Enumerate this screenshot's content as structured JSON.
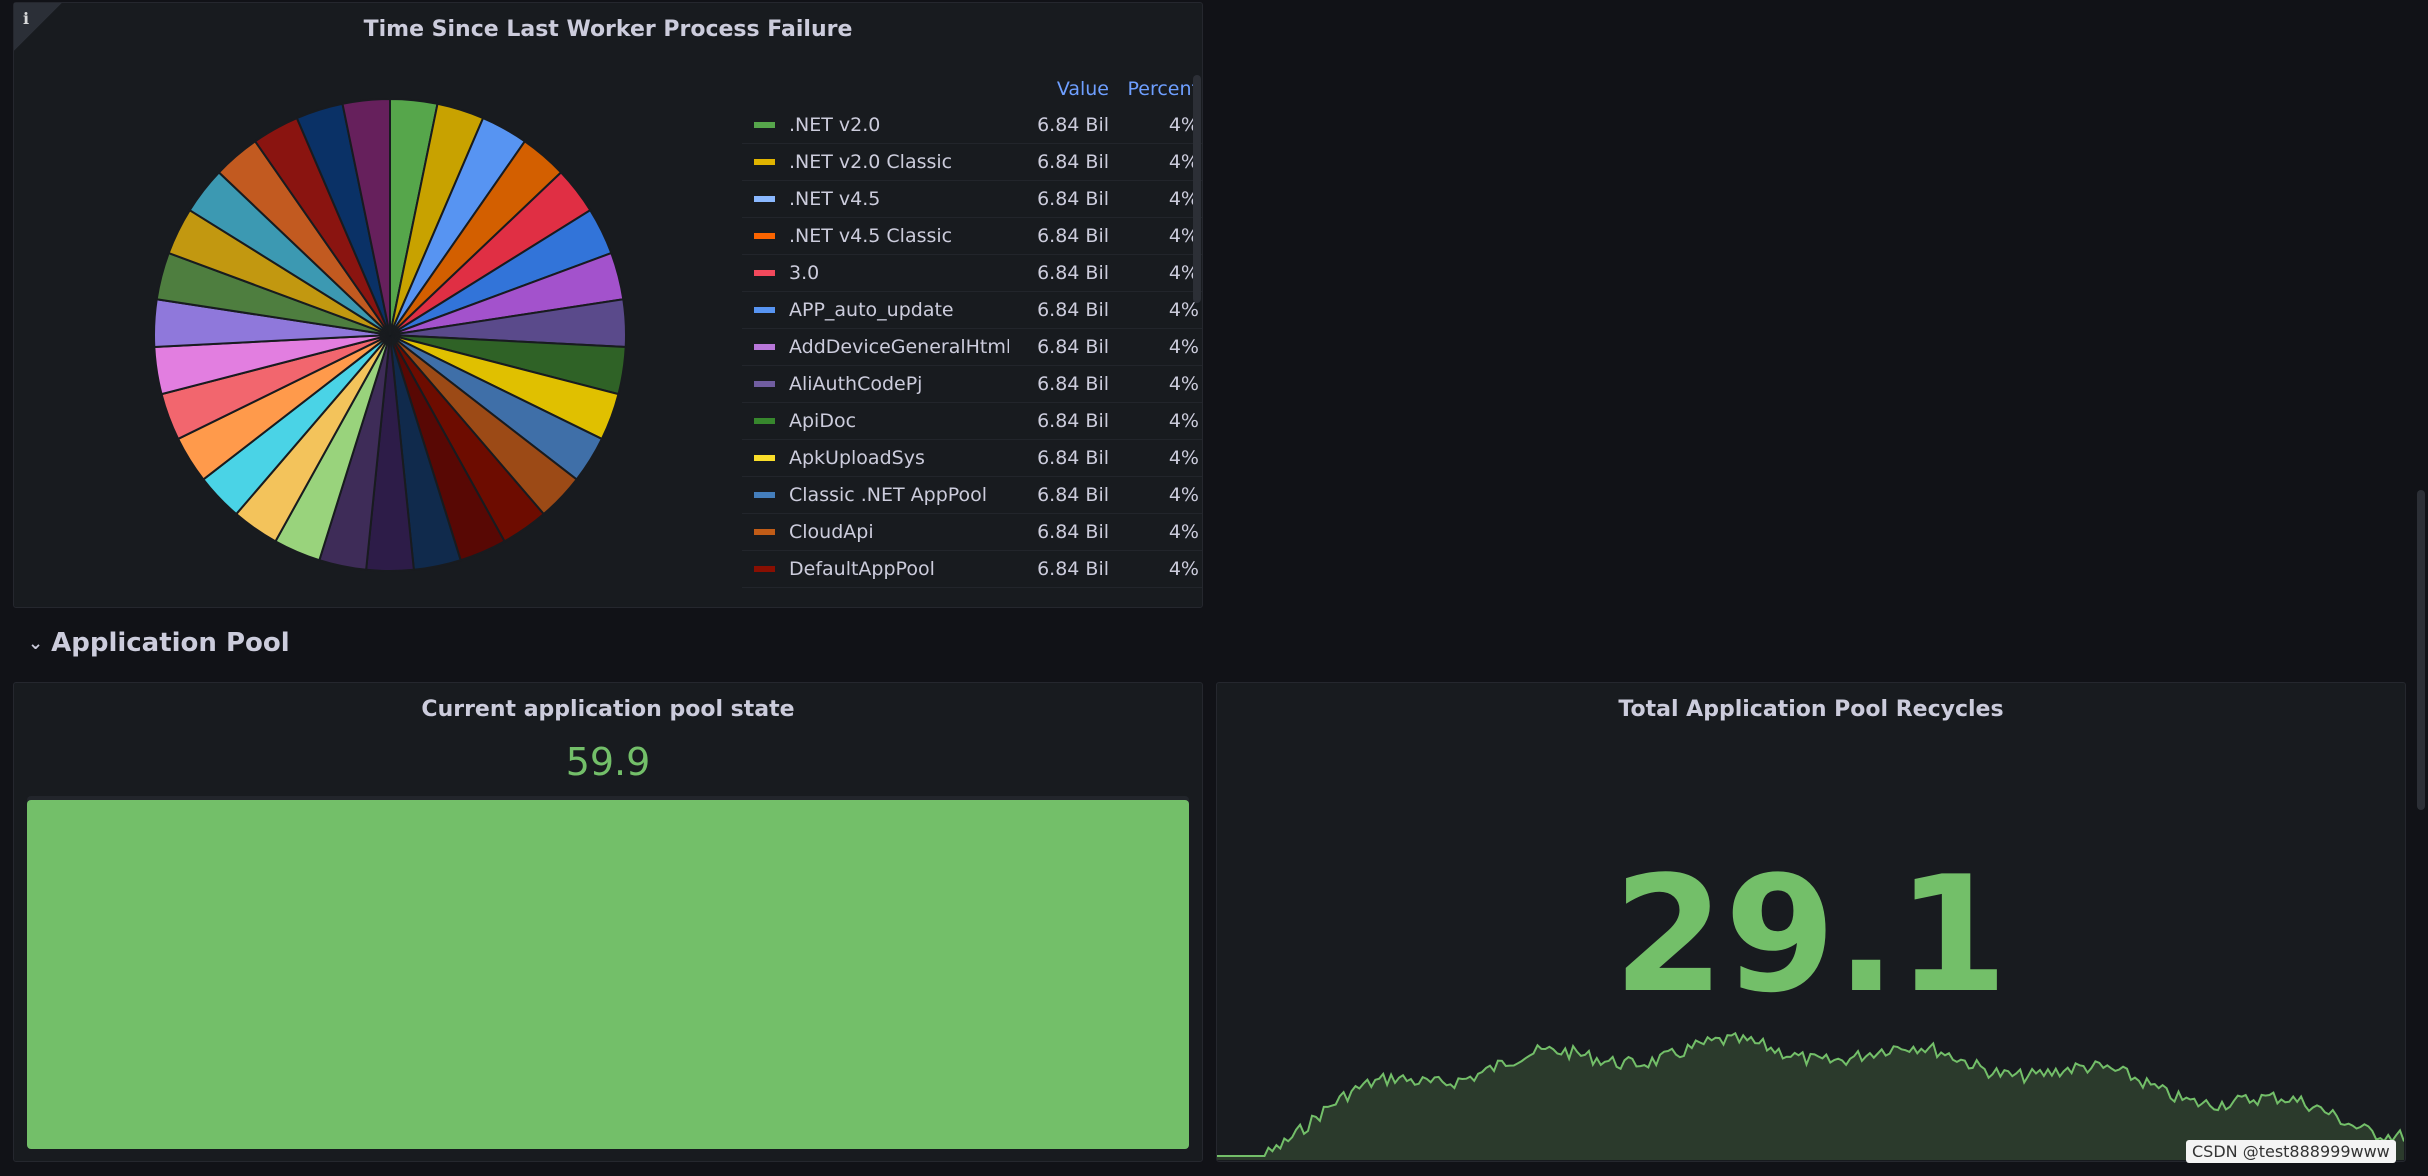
{
  "pie_panel": {
    "title": "Time Since Last Worker Process Failure",
    "info_glyph": "i",
    "legend_headers": {
      "value": "Value",
      "percent": "Percent"
    },
    "legend_items": [
      {
        "name": ".NET v2.0",
        "value": "6.84 Bil",
        "percent": "4%",
        "color": "#56a64b"
      },
      {
        "name": ".NET v2.0 Classic",
        "value": "6.84 Bil",
        "percent": "4%",
        "color": "#e0b400"
      },
      {
        "name": ".NET v4.5",
        "value": "6.84 Bil",
        "percent": "4%",
        "color": "#8ab8ff"
      },
      {
        "name": ".NET v4.5 Classic",
        "value": "6.84 Bil",
        "percent": "4%",
        "color": "#fa6400"
      },
      {
        "name": "3.0",
        "value": "6.84 Bil",
        "percent": "4%",
        "color": "#f2495c"
      },
      {
        "name": "APP_auto_update",
        "value": "6.84 Bil",
        "percent": "4%",
        "color": "#5794f2"
      },
      {
        "name": "AddDeviceGeneralHtml",
        "value": "6.84 Bil",
        "percent": "4%",
        "color": "#b877d9"
      },
      {
        "name": "AliAuthCodePj",
        "value": "6.84 Bil",
        "percent": "4%",
        "color": "#705da0"
      },
      {
        "name": "ApiDoc",
        "value": "6.84 Bil",
        "percent": "4%",
        "color": "#37872d"
      },
      {
        "name": "ApkUploadSys",
        "value": "6.84 Bil",
        "percent": "4%",
        "color": "#fade2a"
      },
      {
        "name": "Classic .NET AppPool",
        "value": "6.84 Bil",
        "percent": "4%",
        "color": "#447ebc"
      },
      {
        "name": "CloudApi",
        "value": "6.84 Bil",
        "percent": "4%",
        "color": "#c15c17"
      },
      {
        "name": "DefaultAppPool",
        "value": "6.84 Bil",
        "percent": "4%",
        "color": "#890f02"
      }
    ],
    "pie_colors": [
      "#56a64b",
      "#c8a200",
      "#5794f2",
      "#d35f00",
      "#e02f44",
      "#3274d9",
      "#a352cc",
      "#5a4a8b",
      "#2f6226",
      "#e0c000",
      "#3f6fa8",
      "#9c4a16",
      "#6d0c00",
      "#580804",
      "#102a4c",
      "#2d1c48",
      "#3e2c58",
      "#99d37c",
      "#f3c35b",
      "#4ad3e6",
      "#ff9a4b",
      "#f2666e",
      "#e27ee0",
      "#8f78db",
      "#4e7e3f",
      "#c29810",
      "#3c99b2",
      "#c25a20",
      "#8a1410",
      "#0a3166",
      "#66205c"
    ]
  },
  "row": {
    "title": "Application Pool",
    "chevron": "⌄"
  },
  "gauge_panel": {
    "title": "Current application pool state",
    "value": "59.9",
    "fill_fraction": 1.0,
    "color": "#73bf69"
  },
  "stat_panel": {
    "title": "Total Application Pool Recycles",
    "value": "29.1",
    "color": "#73bf69"
  },
  "watermark": "CSDN @test888999www"
}
